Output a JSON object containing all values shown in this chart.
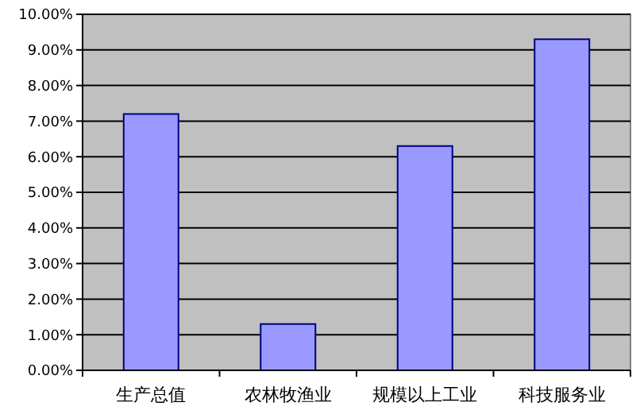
{
  "chart_data": {
    "type": "bar",
    "categories": [
      "生产总值",
      "农林牧渔业",
      "规模以上工业",
      "科技服务业"
    ],
    "values": [
      7.2,
      1.3,
      6.3,
      9.3
    ],
    "color": "#9999ff",
    "ylim": [
      0,
      10
    ],
    "yticks": [
      {
        "value": 0,
        "label": "0.00%"
      },
      {
        "value": 1,
        "label": "1.00%"
      },
      {
        "value": 2,
        "label": "2.00%"
      },
      {
        "value": 3,
        "label": "3.00%"
      },
      {
        "value": 4,
        "label": "4.00%"
      },
      {
        "value": 5,
        "label": "5.00%"
      },
      {
        "value": 6,
        "label": "6.00%"
      },
      {
        "value": 7,
        "label": "7.00%"
      },
      {
        "value": 8,
        "label": "8.00%"
      },
      {
        "value": 9,
        "label": "9.00%"
      },
      {
        "value": 10,
        "label": "10.00%"
      }
    ],
    "grid": "y"
  }
}
